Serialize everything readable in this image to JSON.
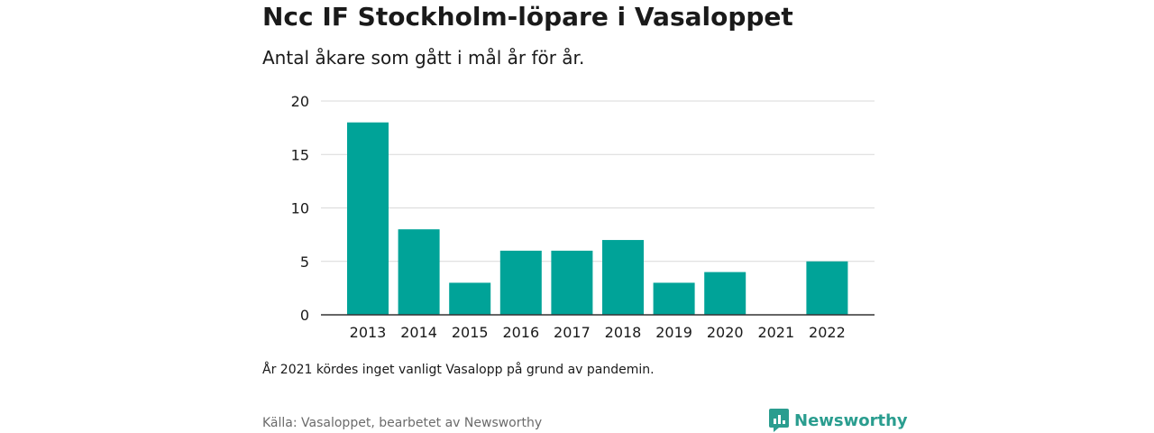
{
  "title": "Ncc IF Stockholm-löpare i Vasaloppet",
  "subtitle": "Antal åkare som gått i mål år för år.",
  "note": "År 2021 kördes inget vanligt Vasalopp på grund av pandemin.",
  "source": "Källa: Vasaloppet, bearbetet av Newsworthy",
  "brand": {
    "name": "Newsworthy",
    "icon": "newsworthy-logo-icon",
    "color": "#2a9d8f"
  },
  "colors": {
    "bar": "#00a398",
    "grid": "#d9d9d9",
    "axis": "#333333"
  },
  "chart_data": {
    "type": "bar",
    "categories": [
      "2013",
      "2014",
      "2015",
      "2016",
      "2017",
      "2018",
      "2019",
      "2020",
      "2021",
      "2022"
    ],
    "values": [
      18,
      8,
      3,
      6,
      6,
      7,
      3,
      4,
      0,
      5
    ],
    "title": "Ncc IF Stockholm-löpare i Vasaloppet",
    "xlabel": "",
    "ylabel": "",
    "ylim": [
      0,
      20
    ],
    "yticks": [
      0,
      5,
      10,
      15,
      20
    ],
    "grid": true,
    "legend": "none"
  }
}
